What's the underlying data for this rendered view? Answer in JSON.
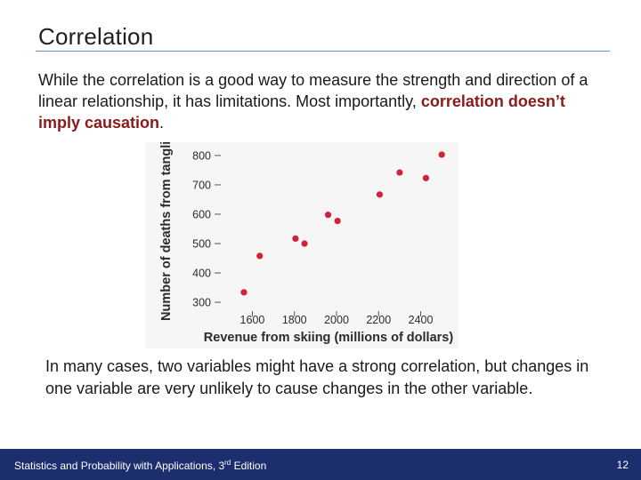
{
  "slide": {
    "title": "Correlation",
    "intro_text": "While the correlation is a good way to measure the strength and direction of a linear relationship, it has limitations. Most importantly, ",
    "intro_emphasis": "correlation doesn’t imply causation",
    "intro_end": ".",
    "note": "In many cases, two variables might have a strong correlation, but changes in one variable are very unlikely to cause changes in the other variable."
  },
  "footer": {
    "book_prefix": "Statistics and Probability with Applications, 3",
    "book_sup": "rd",
    "book_suffix": " Edition",
    "page_number": "12"
  },
  "colors": {
    "point": "#d4213a",
    "footer_bg": "#1c2e6e",
    "emphasis": "#8b1a1a"
  },
  "chart_data": {
    "type": "scatter",
    "title": "",
    "xlabel": "Revenue from skiing (millions of dollars)",
    "ylabel": "Number of deaths from tangling",
    "xlim": [
      1450,
      2550
    ],
    "ylim": [
      270,
      830
    ],
    "x_ticks": [
      1600,
      1800,
      2000,
      2200,
      2400
    ],
    "y_ticks": [
      300,
      400,
      500,
      600,
      700,
      800
    ],
    "points": [
      {
        "x": 1560,
        "y": 334
      },
      {
        "x": 1635,
        "y": 458
      },
      {
        "x": 1805,
        "y": 517
      },
      {
        "x": 1848,
        "y": 500
      },
      {
        "x": 1960,
        "y": 598
      },
      {
        "x": 2005,
        "y": 577
      },
      {
        "x": 2205,
        "y": 667
      },
      {
        "x": 2300,
        "y": 742
      },
      {
        "x": 2425,
        "y": 723
      },
      {
        "x": 2500,
        "y": 803
      }
    ]
  }
}
